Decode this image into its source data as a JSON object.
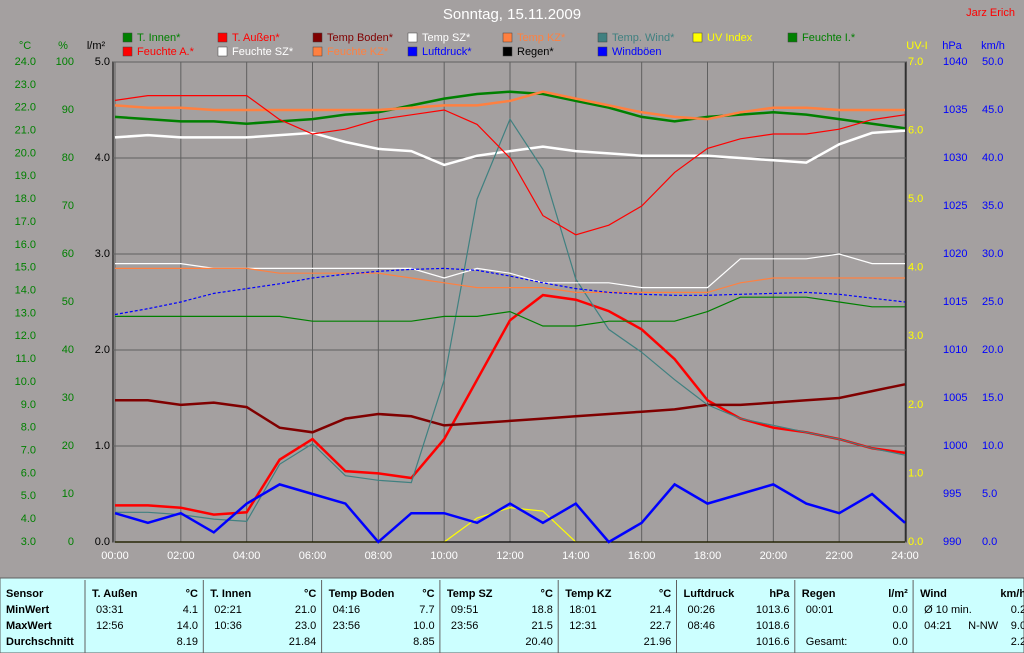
{
  "chart_data": {
    "type": "line",
    "title": "Sonntag, 15.11.2009",
    "credit": "Jarz Erich",
    "x": [
      0,
      1,
      2,
      3,
      4,
      5,
      6,
      7,
      8,
      9,
      10,
      11,
      12,
      13,
      14,
      15,
      16,
      17,
      18,
      19,
      20,
      21,
      22,
      23,
      24
    ],
    "xlim": [
      0,
      24
    ],
    "xticks": [
      {
        "value": 0,
        "label": "00:00"
      },
      {
        "value": 2,
        "label": "02:00"
      },
      {
        "value": 4,
        "label": "04:00"
      },
      {
        "value": 6,
        "label": "06:00"
      },
      {
        "value": 8,
        "label": "08:00"
      },
      {
        "value": 10,
        "label": "10:00"
      },
      {
        "value": 12,
        "label": "12:00"
      },
      {
        "value": 14,
        "label": "14:00"
      },
      {
        "value": 16,
        "label": "16:00"
      },
      {
        "value": 18,
        "label": "18:00"
      },
      {
        "value": 20,
        "label": "20:00"
      },
      {
        "value": 22,
        "label": "22:00"
      },
      {
        "value": 24,
        "label": "24:00"
      }
    ],
    "ylabel": "°C",
    "ylim": [
      3,
      24
    ],
    "yticks": [
      {
        "value": 3,
        "label": "3.0"
      },
      {
        "value": 4,
        "label": "4.0"
      },
      {
        "value": 5,
        "label": "5.0"
      },
      {
        "value": 6,
        "label": "6.0"
      },
      {
        "value": 7,
        "label": "7.0"
      },
      {
        "value": 8,
        "label": "8.0"
      },
      {
        "value": 9,
        "label": "9.0"
      },
      {
        "value": 10,
        "label": "10.0"
      },
      {
        "value": 11,
        "label": "11.0"
      },
      {
        "value": 12,
        "label": "12.0"
      },
      {
        "value": 13,
        "label": "13.0"
      },
      {
        "value": 14,
        "label": "14.0"
      },
      {
        "value": 15,
        "label": "15.0"
      },
      {
        "value": 16,
        "label": "16.0"
      },
      {
        "value": 17,
        "label": "17.0"
      },
      {
        "value": 18,
        "label": "18.0"
      },
      {
        "value": 19,
        "label": "19.0"
      },
      {
        "value": 20,
        "label": "20.0"
      },
      {
        "value": 21,
        "label": "21.0"
      },
      {
        "value": 22,
        "label": "22.0"
      },
      {
        "value": 23,
        "label": "23.0"
      },
      {
        "value": 24,
        "label": "24.0"
      }
    ],
    "y2label": "%",
    "y2lim": [
      0,
      100
    ],
    "y2ticks": [
      0,
      10,
      20,
      30,
      40,
      50,
      60,
      70,
      80,
      90,
      100
    ],
    "y3label": "l/m²",
    "y3lim": [
      0,
      5
    ],
    "y3ticks": [
      {
        "value": 0,
        "label": "0.0"
      },
      {
        "value": 1,
        "label": "1.0"
      },
      {
        "value": 2,
        "label": "2.0"
      },
      {
        "value": 3,
        "label": "3.0"
      },
      {
        "value": 4,
        "label": "4.0"
      },
      {
        "value": 5,
        "label": "5.0"
      }
    ],
    "y4label": "UV-I",
    "y4lim": [
      0,
      7
    ],
    "y4ticks": [
      {
        "value": 0,
        "label": "0.0"
      },
      {
        "value": 1,
        "label": "1.0"
      },
      {
        "value": 2,
        "label": "2.0"
      },
      {
        "value": 3,
        "label": "3.0"
      },
      {
        "value": 4,
        "label": "4.0"
      },
      {
        "value": 5,
        "label": "5.0"
      },
      {
        "value": 6,
        "label": "6.0"
      },
      {
        "value": 7,
        "label": "7.0"
      }
    ],
    "y5label": "hPa",
    "y5lim": [
      990,
      1040
    ],
    "y5ticks": [
      990,
      995,
      1000,
      1005,
      1010,
      1015,
      1020,
      1025,
      1030,
      1035,
      1040
    ],
    "y6label": "km/h",
    "y6lim": [
      0,
      50
    ],
    "y6ticks": [
      {
        "value": 0,
        "label": "0.0"
      },
      {
        "value": 5,
        "label": "5.0"
      },
      {
        "value": 10,
        "label": "10.0"
      },
      {
        "value": 15,
        "label": "15.0"
      },
      {
        "value": 20,
        "label": "20.0"
      },
      {
        "value": 25,
        "label": "25.0"
      },
      {
        "value": 30,
        "label": "30.0"
      },
      {
        "value": 35,
        "label": "35.0"
      },
      {
        "value": 40,
        "label": "40.0"
      },
      {
        "value": 45,
        "label": "45.0"
      },
      {
        "value": 50,
        "label": "50.0"
      }
    ],
    "axis_colors": {
      "y": "#008000",
      "y2": "#008000",
      "y3": "#000000",
      "y4": "#ffff00",
      "y5": "#0000ff",
      "y6": "#0000ff"
    },
    "grid": "y3",
    "series": [
      {
        "name": "T. Innen*",
        "color": "#008000",
        "axis": "y",
        "style": "thick",
        "values": [
          21.6,
          21.5,
          21.4,
          21.4,
          21.3,
          21.4,
          21.5,
          21.7,
          21.8,
          22.1,
          22.4,
          22.6,
          22.7,
          22.6,
          22.3,
          22.0,
          21.6,
          21.4,
          21.6,
          21.7,
          21.8,
          21.7,
          21.5,
          21.3,
          21.1
        ]
      },
      {
        "name": "T. Außen*",
        "color": "#ff0000",
        "axis": "y",
        "style": "thick",
        "values": [
          4.6,
          4.6,
          4.5,
          4.2,
          4.3,
          6.6,
          7.5,
          6.1,
          6.0,
          5.8,
          7.5,
          10.1,
          12.7,
          13.8,
          13.6,
          13.1,
          12.3,
          11.0,
          9.2,
          8.4,
          8.0,
          7.8,
          7.5,
          7.1,
          6.9
        ]
      },
      {
        "name": "Temp Boden*",
        "color": "#800000",
        "axis": "y",
        "style": "thick",
        "values": [
          9.2,
          9.2,
          9.0,
          9.1,
          8.9,
          8.0,
          7.8,
          8.4,
          8.6,
          8.5,
          8.1,
          8.2,
          8.3,
          8.4,
          8.5,
          8.6,
          8.7,
          8.8,
          9.0,
          9.0,
          9.1,
          9.2,
          9.3,
          9.6,
          9.9
        ]
      },
      {
        "name": "Temp SZ*",
        "color": "#ffffff",
        "axis": "y",
        "style": "thick",
        "values": [
          20.7,
          20.8,
          20.7,
          20.7,
          20.7,
          20.8,
          20.9,
          20.5,
          20.2,
          20.1,
          19.5,
          19.9,
          20.1,
          20.3,
          20.1,
          20.0,
          19.9,
          19.9,
          19.9,
          19.8,
          19.7,
          19.6,
          20.4,
          20.9,
          21.0
        ]
      },
      {
        "name": "Temp KZ*",
        "color": "#ff8040",
        "axis": "y",
        "style": "thick",
        "values": [
          22.1,
          22.0,
          22.0,
          21.9,
          21.9,
          21.9,
          21.9,
          21.9,
          21.9,
          22.0,
          22.1,
          22.1,
          22.3,
          22.7,
          22.4,
          22.1,
          21.8,
          21.6,
          21.5,
          21.8,
          22.0,
          22.0,
          21.9,
          21.9,
          21.9
        ]
      },
      {
        "name": "Temp. Wind*",
        "color": "#408080",
        "axis": "y",
        "style": "thin",
        "values": [
          4.3,
          4.3,
          4.2,
          4.0,
          3.9,
          6.4,
          7.3,
          5.9,
          5.7,
          5.6,
          10.1,
          18.0,
          21.5,
          19.3,
          14.5,
          12.3,
          11.3,
          10.1,
          9.0,
          8.4,
          8.1,
          7.8,
          7.5,
          7.1,
          6.8
        ]
      },
      {
        "name": "UV Index",
        "color": "#ffff00",
        "axis": "y4",
        "style": "thin",
        "values": [
          0,
          0,
          0,
          0,
          0,
          0,
          0,
          0,
          0,
          0,
          0,
          0.35,
          0.5,
          0.45,
          0,
          0,
          0,
          0,
          0,
          0,
          0,
          0,
          0,
          0,
          0
        ]
      },
      {
        "name": "Feuchte I.*",
        "color": "#008000",
        "axis": "y2",
        "style": "thin",
        "values": [
          47,
          47,
          47,
          47,
          47,
          47,
          46,
          46,
          46,
          46,
          47,
          47,
          48,
          45,
          45,
          46,
          46,
          46,
          48,
          51,
          51,
          51,
          50,
          49,
          49
        ]
      },
      {
        "name": "Feuchte A.*",
        "color": "#ff0000",
        "axis": "y2",
        "style": "thin",
        "values": [
          92,
          93,
          93,
          93,
          93,
          88,
          85,
          86,
          88,
          89,
          90,
          87,
          80,
          68,
          64,
          66,
          70,
          77,
          82,
          84,
          85,
          85,
          86,
          88,
          89
        ]
      },
      {
        "name": "Feuchte SZ*",
        "color": "#ffffff",
        "axis": "y2",
        "style": "thin",
        "values": [
          58,
          58,
          58,
          57,
          57,
          57,
          57,
          57,
          57,
          57,
          55,
          57,
          56,
          54,
          54,
          54,
          53,
          53,
          53,
          59,
          59,
          59,
          60,
          58,
          58
        ]
      },
      {
        "name": "Feuchte KZ*",
        "color": "#ff8040",
        "axis": "y2",
        "style": "thin",
        "values": [
          57,
          57,
          57,
          57,
          57,
          56,
          56,
          56,
          56,
          55,
          54,
          53,
          53,
          53,
          52,
          52,
          52,
          52,
          52,
          54,
          55,
          55,
          55,
          55,
          55
        ]
      },
      {
        "name": "Luftdruck*",
        "color": "#0000ff",
        "axis": "y5",
        "style": "dashed",
        "values": [
          1013.7,
          1014.3,
          1015.0,
          1015.9,
          1016.4,
          1016.9,
          1017.5,
          1017.9,
          1018.2,
          1018.4,
          1018.5,
          1018.3,
          1017.7,
          1017.0,
          1016.4,
          1016.0,
          1015.8,
          1015.7,
          1015.7,
          1015.8,
          1015.9,
          1016.0,
          1015.8,
          1015.4,
          1015.0
        ]
      },
      {
        "name": "Regen*",
        "color": "#000000",
        "axis": "y3",
        "style": "thin",
        "values": [
          0,
          0,
          0,
          0,
          0,
          0,
          0,
          0,
          0,
          0,
          0,
          0,
          0,
          0,
          0,
          0,
          0,
          0,
          0,
          0,
          0,
          0,
          0,
          0,
          0
        ]
      },
      {
        "name": "Windböen",
        "color": "#0000ff",
        "axis": "y6",
        "style": "thick",
        "values": [
          3,
          2,
          3,
          1,
          4,
          6,
          5,
          4,
          0,
          3,
          3,
          2,
          4,
          2,
          4,
          0,
          2,
          6,
          4,
          5,
          6,
          4,
          3,
          5,
          2
        ]
      }
    ]
  },
  "table": {
    "title": "Sensor",
    "row_labels": [
      "MinWert",
      "MaxWert",
      "Durchschnitt"
    ],
    "columns": [
      {
        "name": "T. Außen",
        "unit": "°C",
        "rows": [
          [
            "03:31",
            "4.1"
          ],
          [
            "12:56",
            "14.0"
          ],
          [
            null,
            "8.19"
          ]
        ]
      },
      {
        "name": "T. Innen",
        "unit": "°C",
        "rows": [
          [
            "02:21",
            "21.0"
          ],
          [
            "10:36",
            "23.0"
          ],
          [
            null,
            "21.84"
          ]
        ]
      },
      {
        "name": "Temp Boden",
        "unit": "°C",
        "rows": [
          [
            "04:16",
            "7.7"
          ],
          [
            "23:56",
            "10.0"
          ],
          [
            null,
            "8.85"
          ]
        ]
      },
      {
        "name": "Temp SZ",
        "unit": "°C",
        "rows": [
          [
            "09:51",
            "18.8"
          ],
          [
            "23:56",
            "21.5"
          ],
          [
            null,
            "20.40"
          ]
        ]
      },
      {
        "name": "Temp KZ",
        "unit": "°C",
        "rows": [
          [
            "18:01",
            "21.4"
          ],
          [
            "12:31",
            "22.7"
          ],
          [
            null,
            "21.96"
          ]
        ]
      },
      {
        "name": "Luftdruck",
        "unit": "hPa",
        "rows": [
          [
            "00:26",
            "1013.6"
          ],
          [
            "08:46",
            "1018.6"
          ],
          [
            null,
            "1016.6"
          ]
        ]
      },
      {
        "name": "Regen",
        "unit": "l/m²",
        "rows": [
          [
            "00:01",
            "0.0"
          ],
          [
            null,
            "0.0"
          ],
          [
            "Gesamt:",
            "0.0"
          ]
        ]
      },
      {
        "name": "Wind",
        "unit": "km/h",
        "rows": [
          [
            "Ø 10 min.",
            "0.2"
          ],
          [
            "04:21",
            "N-NW",
            "9.0"
          ],
          [
            null,
            "2.2"
          ]
        ]
      }
    ]
  }
}
